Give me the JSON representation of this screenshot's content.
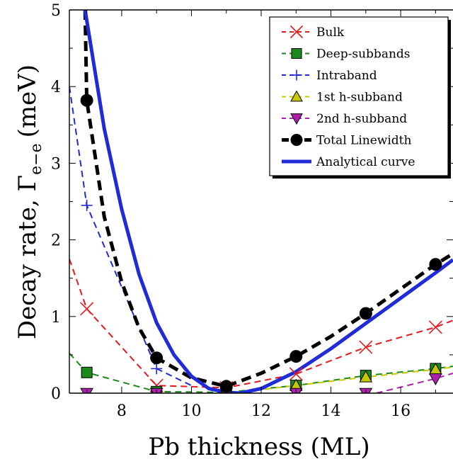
{
  "chart_data": {
    "type": "line",
    "xlabel": "Pb thickness (ML)",
    "ylabel": "Decay rate, Γ",
    "ylabel_subscript": "e−e",
    "ylabel_unit": "(meV)",
    "xlim": [
      6.5,
      17.5
    ],
    "ylim": [
      0,
      5
    ],
    "xticks": [
      8,
      10,
      12,
      14,
      16
    ],
    "yticks": [
      0,
      1,
      2,
      3,
      4,
      5
    ],
    "grid": false,
    "legend_position": "top-right",
    "series": [
      {
        "name": "Bulk",
        "color": "#e41a1c",
        "marker": "x",
        "line_style": "dashed",
        "x": [
          7,
          9,
          11,
          13,
          15,
          17
        ],
        "y": [
          1.1,
          0.1,
          0.07,
          0.25,
          0.6,
          0.86
        ],
        "curve_x": [
          6.5,
          7,
          9,
          11,
          13,
          15,
          17,
          17.5
        ],
        "curve_y": [
          1.75,
          1.1,
          0.1,
          0.07,
          0.25,
          0.6,
          0.86,
          0.95
        ]
      },
      {
        "name": "Deep-subbands",
        "color": "#1a8a1a",
        "marker": "square",
        "line_style": "dashed",
        "x": [
          7,
          9,
          11,
          13,
          15,
          17
        ],
        "y": [
          0.27,
          0.02,
          0.01,
          0.1,
          0.23,
          0.32
        ],
        "curve_x": [
          6.5,
          7,
          9,
          11,
          13,
          15,
          17,
          17.5
        ],
        "curve_y": [
          0.52,
          0.27,
          0.02,
          0.01,
          0.1,
          0.23,
          0.32,
          0.35
        ]
      },
      {
        "name": "Intraband",
        "color": "#1f2bd6",
        "marker": "plus",
        "line_style": "dashed",
        "x": [
          7,
          9
        ],
        "y": [
          2.45,
          0.32
        ],
        "curve_x": [
          6.5,
          7,
          9,
          10
        ],
        "curve_y": [
          4.0,
          2.45,
          0.32,
          0.1
        ]
      },
      {
        "name": "1st h-subband",
        "color": "#c8c800",
        "marker": "triangle-up",
        "line_style": "dashed",
        "x": [
          13,
          15,
          17
        ],
        "y": [
          0.1,
          0.21,
          0.31
        ],
        "curve_x": [
          11.5,
          13,
          15,
          17,
          17.5
        ],
        "curve_y": [
          0.02,
          0.1,
          0.21,
          0.31,
          0.34
        ]
      },
      {
        "name": "2nd h-subband",
        "color": "#b01fb0",
        "marker": "triangle-down",
        "line_style": "dashed",
        "x": [
          7,
          9,
          11,
          13,
          15,
          17
        ],
        "y": [
          0.0,
          0.0,
          0.0,
          0.0,
          0.0,
          0.19
        ],
        "curve_x": [
          15.3,
          17,
          17.5
        ],
        "curve_y": [
          0.0,
          0.19,
          0.26
        ]
      },
      {
        "name": "Total Linewidth",
        "color": "#000000",
        "marker": "circle",
        "line_style": "dashed-thick",
        "x": [
          7,
          9,
          11,
          13,
          15,
          17
        ],
        "y": [
          3.82,
          0.46,
          0.09,
          0.48,
          1.04,
          1.68
        ],
        "curve_x": [
          6.95,
          7,
          7.5,
          8,
          8.5,
          9,
          10,
          11,
          12,
          13,
          14,
          15,
          16,
          17,
          17.5
        ],
        "curve_y": [
          5.0,
          3.82,
          2.3,
          1.45,
          0.85,
          0.46,
          0.2,
          0.09,
          0.26,
          0.48,
          0.74,
          1.04,
          1.36,
          1.68,
          1.82
        ]
      },
      {
        "name": "Analytical curve",
        "color": "#1f2bd6",
        "marker": "none",
        "line_style": "solid-thick",
        "x": [],
        "y": [],
        "curve_x": [
          6.95,
          7.5,
          8,
          8.5,
          9,
          9.5,
          10,
          10.5,
          11,
          11.4,
          12,
          13,
          14,
          15,
          16,
          17,
          17.5
        ],
        "curve_y": [
          5.0,
          3.45,
          2.4,
          1.55,
          0.92,
          0.5,
          0.22,
          0.06,
          0.01,
          0.0,
          0.06,
          0.28,
          0.58,
          0.91,
          1.24,
          1.57,
          1.74
        ]
      }
    ]
  }
}
